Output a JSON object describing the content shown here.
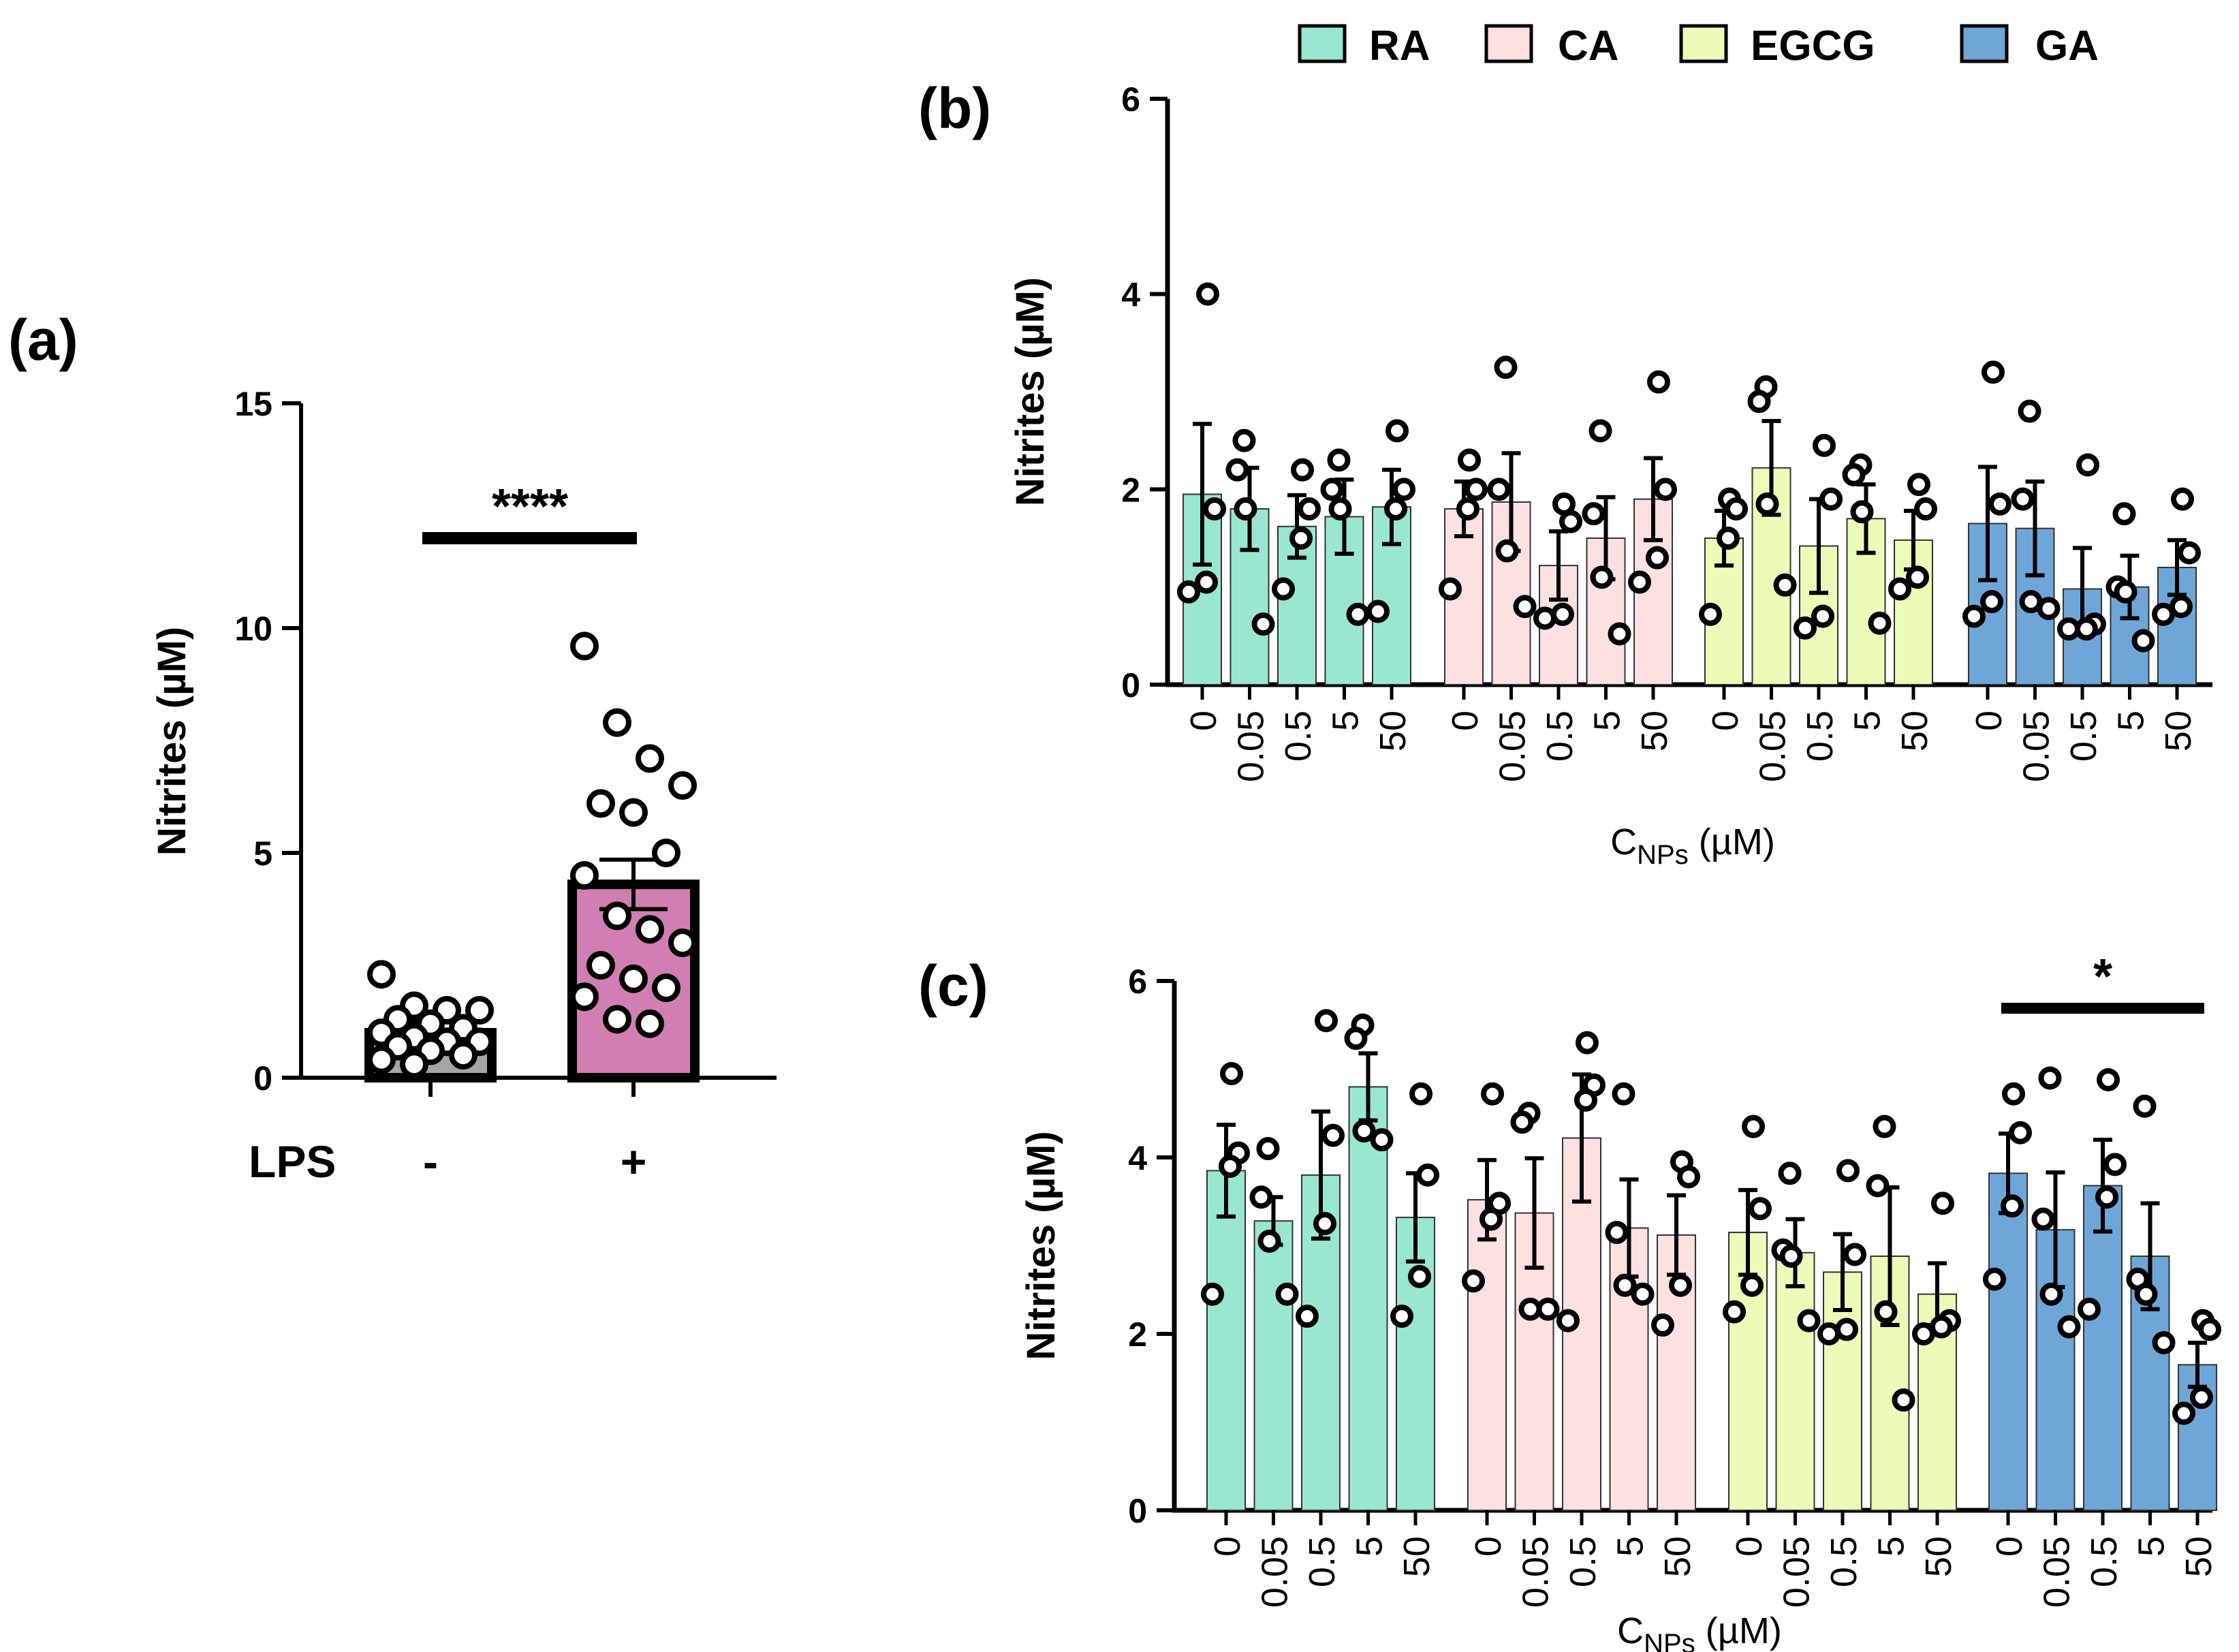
{
  "legend": [
    {
      "label": "RA",
      "color": "#99e6d3"
    },
    {
      "label": "CA",
      "color": "#fde0e0"
    },
    {
      "label": "EGCG",
      "color": "#eafcb8"
    },
    {
      "label": "GA",
      "color": "#6ea6d8"
    }
  ],
  "chart_data": [
    {
      "panel": "(a)",
      "type": "bar",
      "ylabel": "Nitrites (µM)",
      "xlabel": "LPS",
      "ylim": [
        0,
        15
      ],
      "yticks": [
        "0",
        "5",
        "10",
        "15"
      ],
      "categories": [
        "-",
        "+"
      ],
      "colors": [
        "#a6a6a6",
        "#d17fb2"
      ],
      "values": [
        1.0,
        4.3
      ],
      "errors": [
        0.25,
        0.55
      ],
      "points": [
        [
          2.3,
          1.6,
          1.5,
          1.5,
          1.3,
          1.2,
          1.1,
          1.0,
          0.9,
          0.8,
          0.8,
          0.7,
          0.6,
          0.5,
          0.4,
          0.3
        ],
        [
          9.6,
          7.9,
          7.1,
          6.5,
          6.1,
          5.9,
          5.0,
          4.5,
          3.6,
          3.3,
          3.0,
          2.5,
          2.2,
          2.0,
          1.8,
          1.3,
          1.2
        ]
      ],
      "significance": "****"
    },
    {
      "panel": "(b)",
      "type": "bar",
      "ylabel": "Nitrites (µM)",
      "xlabel_main": "C",
      "xlabel_sub": "NPs",
      "xlabel_unit": " (µM)",
      "ylim": [
        0,
        6
      ],
      "yticks": [
        "0",
        "2",
        "4",
        "6"
      ],
      "concentrations": [
        "0",
        "0.05",
        "0.5",
        "5",
        "50"
      ],
      "series": [
        {
          "name": "RA",
          "values": [
            1.95,
            1.8,
            1.62,
            1.72,
            1.82
          ],
          "errors": [
            0.72,
            0.42,
            0.32,
            0.38,
            0.38
          ],
          "points": [
            [
              4.0,
              1.8,
              1.05,
              0.95
            ],
            [
              2.5,
              2.2,
              1.8,
              0.62
            ],
            [
              2.2,
              1.8,
              1.5,
              0.98
            ],
            [
              2.3,
              2.0,
              1.8,
              0.72
            ],
            [
              2.6,
              2.0,
              1.8,
              0.75
            ]
          ]
        },
        {
          "name": "CA",
          "values": [
            1.8,
            1.87,
            1.22,
            1.5,
            1.9
          ],
          "errors": [
            0.28,
            0.5,
            0.35,
            0.42,
            0.42
          ],
          "points": [
            [
              2.3,
              2.0,
              1.8,
              0.98
            ],
            [
              3.25,
              2.0,
              1.37,
              0.8
            ],
            [
              1.85,
              1.67,
              0.72,
              0.68
            ],
            [
              2.6,
              1.75,
              1.1,
              0.52
            ],
            [
              3.1,
              2.0,
              1.3,
              1.05
            ]
          ]
        },
        {
          "name": "EGCG",
          "values": [
            1.5,
            2.22,
            1.42,
            1.7,
            1.48
          ],
          "errors": [
            0.28,
            0.48,
            0.48,
            0.35,
            0.3
          ],
          "points": [
            [
              1.9,
              1.8,
              1.5,
              0.72
            ],
            [
              3.05,
              2.9,
              1.85,
              1.02
            ],
            [
              2.45,
              1.9,
              0.7,
              0.58
            ],
            [
              2.25,
              2.15,
              1.77,
              0.63
            ],
            [
              2.05,
              1.8,
              1.1,
              0.98
            ]
          ]
        },
        {
          "name": "GA",
          "values": [
            1.65,
            1.6,
            0.98,
            1.0,
            1.2
          ],
          "errors": [
            0.58,
            0.48,
            0.42,
            0.32,
            0.28
          ],
          "points": [
            [
              3.2,
              1.85,
              0.85,
              0.7
            ],
            [
              2.8,
              1.9,
              0.85,
              0.78
            ],
            [
              2.25,
              0.62,
              0.57,
              0.57
            ],
            [
              1.75,
              1.0,
              0.95,
              0.45
            ],
            [
              1.9,
              1.35,
              0.8,
              0.72
            ]
          ]
        }
      ]
    },
    {
      "panel": "(c)",
      "type": "bar",
      "ylabel": "Nitrites (µM)",
      "xlabel_main": "C",
      "xlabel_sub": "NPs",
      "xlabel_unit": " (µM)",
      "ylim": [
        0,
        6
      ],
      "yticks": [
        "0",
        "2",
        "4",
        "6"
      ],
      "concentrations": [
        "0",
        "0.05",
        "0.5",
        "5",
        "50"
      ],
      "series": [
        {
          "name": "RA",
          "values": [
            3.85,
            3.28,
            3.8,
            4.8,
            3.32
          ],
          "errors": [
            0.52,
            0.27,
            0.72,
            0.38,
            0.5
          ],
          "points": [
            [
              4.95,
              4.05,
              3.9,
              2.45
            ],
            [
              4.1,
              3.55,
              3.05,
              2.45
            ],
            [
              5.55,
              4.25,
              3.25,
              2.2
            ],
            [
              5.5,
              5.35,
              4.3,
              4.2
            ],
            [
              4.72,
              3.8,
              2.65,
              2.2
            ]
          ]
        },
        {
          "name": "CA",
          "values": [
            3.52,
            3.37,
            4.22,
            3.2,
            3.12
          ],
          "errors": [
            0.45,
            0.62,
            0.72,
            0.55,
            0.45
          ],
          "points": [
            [
              4.72,
              3.48,
              3.3,
              2.6
            ],
            [
              4.5,
              4.4,
              2.28,
              2.28
            ],
            [
              5.3,
              4.82,
              4.65,
              2.15
            ],
            [
              4.72,
              3.15,
              2.55,
              2.45
            ],
            [
              3.95,
              3.78,
              2.55,
              2.1
            ]
          ]
        },
        {
          "name": "EGCG",
          "values": [
            3.15,
            2.92,
            2.7,
            2.88,
            2.45
          ],
          "errors": [
            0.48,
            0.38,
            0.43,
            0.78,
            0.35
          ],
          "points": [
            [
              4.35,
              3.42,
              2.55,
              2.25
            ],
            [
              3.82,
              2.95,
              2.88,
              2.15
            ],
            [
              3.85,
              2.9,
              2.05,
              2.0
            ],
            [
              4.35,
              3.68,
              2.25,
              1.25
            ],
            [
              3.48,
              2.15,
              2.08,
              2.0
            ]
          ]
        },
        {
          "name": "GA",
          "values": [
            3.82,
            3.18,
            3.68,
            2.88,
            1.65
          ],
          "errors": [
            0.45,
            0.65,
            0.52,
            0.6,
            0.25
          ],
          "points": [
            [
              4.72,
              4.28,
              3.45,
              2.62
            ],
            [
              4.9,
              3.3,
              2.45,
              2.08
            ],
            [
              4.88,
              3.92,
              3.55,
              2.28
            ],
            [
              4.58,
              2.62,
              2.45,
              1.9
            ],
            [
              2.15,
              2.05,
              1.28,
              1.1
            ]
          ]
        }
      ],
      "significance": "*",
      "significance_over": "GA"
    }
  ]
}
